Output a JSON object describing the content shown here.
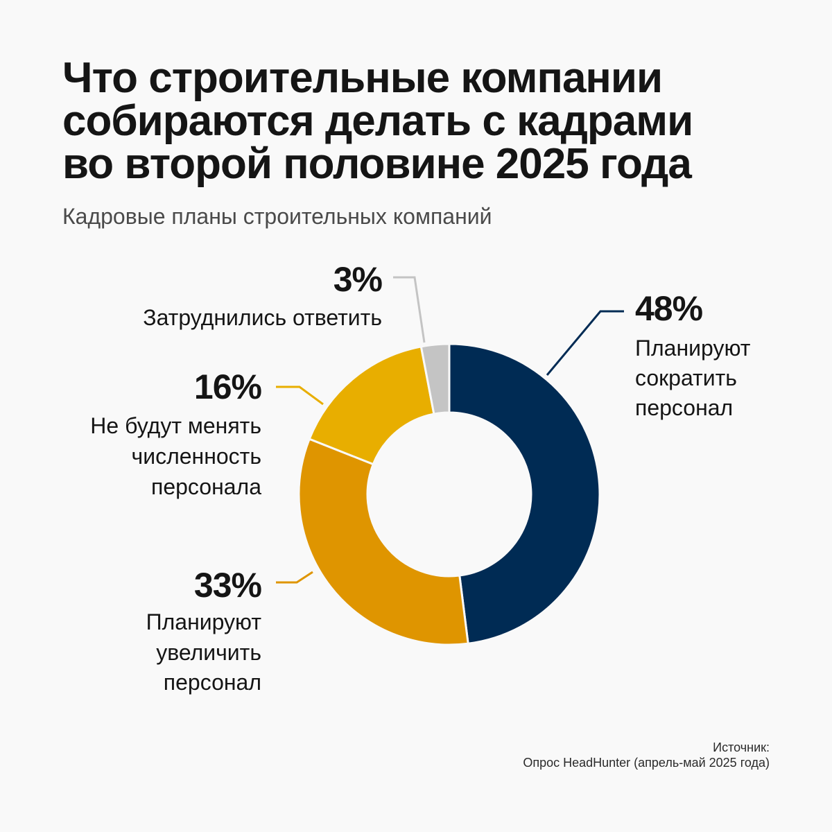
{
  "title": {
    "line1": "Что строительные компании",
    "line2": "собираются делать с кадрами",
    "line3": "во второй половине 2025 года"
  },
  "subtitle": "Кадровые планы строительных компаний",
  "chart_data": {
    "type": "pie",
    "donut": true,
    "slices": [
      {
        "value": 48,
        "percent_label": "48%",
        "label_lines": [
          "Планируют",
          "сократить",
          "персонал"
        ],
        "color": "#002b54"
      },
      {
        "value": 33,
        "percent_label": "33%",
        "label_lines": [
          "Планируют",
          "увеличить",
          "персонал"
        ],
        "color": "#df9500"
      },
      {
        "value": 16,
        "percent_label": "16%",
        "label_lines": [
          "Не будут менять",
          "численность",
          "персонала"
        ],
        "color": "#e8ae00"
      },
      {
        "value": 3,
        "percent_label": "3%",
        "label_lines": [
          "Затруднились ответить"
        ],
        "color": "#c4c4c4"
      }
    ]
  },
  "source": {
    "heading": "Источник:",
    "text": "Опрос HeadHunter (апрель-май 2025 года)"
  }
}
